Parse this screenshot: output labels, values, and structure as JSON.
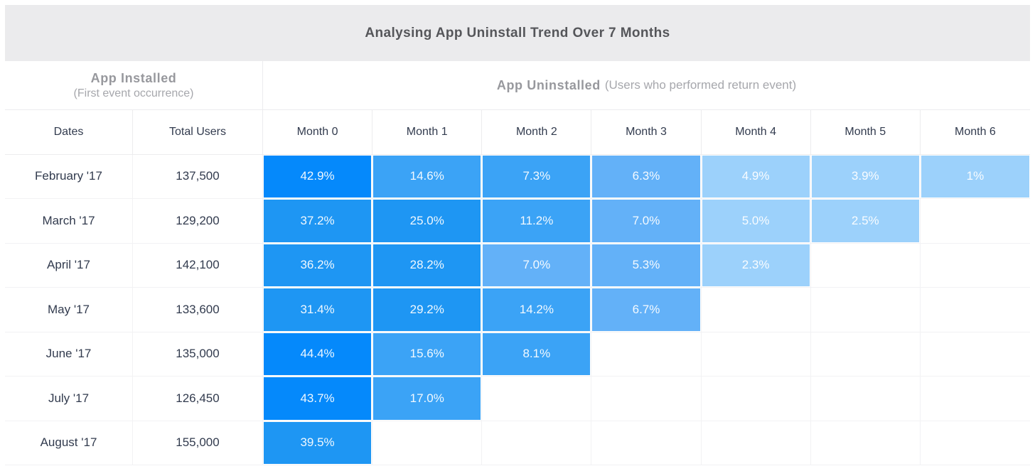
{
  "title": "Analysing App Uninstall Trend Over 7 Months",
  "group_headers": {
    "installed": {
      "label": "App Installed",
      "sub": "(First event occurrence)"
    },
    "uninstalled": {
      "label": "App Uninstalled",
      "sub": "(Users who performed return event)"
    }
  },
  "columns": [
    "Dates",
    "Total Users",
    "Month 0",
    "Month 1",
    "Month 2",
    "Month 3",
    "Month 4",
    "Month 5",
    "Month 6"
  ],
  "palette": {
    "c1": "#0589fb",
    "c2": "#1e96f3",
    "c3": "#3ba3f6",
    "c4": "#63b1f8",
    "c5": "#9cd1fb",
    "header_bg": "#ebebed",
    "text_dark": "#323b4e",
    "text_gray": "#97989d"
  },
  "rows": [
    {
      "date": "February '17",
      "total": "137,500",
      "cells": [
        {
          "v": "42.9%",
          "c": "c1"
        },
        {
          "v": "14.6%",
          "c": "c3"
        },
        {
          "v": "7.3%",
          "c": "c3"
        },
        {
          "v": "6.3%",
          "c": "c4"
        },
        {
          "v": "4.9%",
          "c": "c5"
        },
        {
          "v": "3.9%",
          "c": "c5"
        },
        {
          "v": "1%",
          "c": "c5"
        }
      ]
    },
    {
      "date": "March '17",
      "total": "129,200",
      "cells": [
        {
          "v": "37.2%",
          "c": "c2"
        },
        {
          "v": "25.0%",
          "c": "c2"
        },
        {
          "v": "11.2%",
          "c": "c3"
        },
        {
          "v": "7.0%",
          "c": "c4"
        },
        {
          "v": "5.0%",
          "c": "c5"
        },
        {
          "v": "2.5%",
          "c": "c5"
        },
        null
      ]
    },
    {
      "date": "April '17",
      "total": "142,100",
      "cells": [
        {
          "v": "36.2%",
          "c": "c2"
        },
        {
          "v": "28.2%",
          "c": "c2"
        },
        {
          "v": "7.0%",
          "c": "c4"
        },
        {
          "v": "5.3%",
          "c": "c4"
        },
        {
          "v": "2.3%",
          "c": "c5"
        },
        null,
        null
      ]
    },
    {
      "date": "May '17",
      "total": "133,600",
      "cells": [
        {
          "v": "31.4%",
          "c": "c2"
        },
        {
          "v": "29.2%",
          "c": "c2"
        },
        {
          "v": "14.2%",
          "c": "c3"
        },
        {
          "v": "6.7%",
          "c": "c4"
        },
        null,
        null,
        null
      ]
    },
    {
      "date": "June '17",
      "total": "135,000",
      "cells": [
        {
          "v": "44.4%",
          "c": "c1"
        },
        {
          "v": "15.6%",
          "c": "c3"
        },
        {
          "v": "8.1%",
          "c": "c3"
        },
        null,
        null,
        null,
        null
      ]
    },
    {
      "date": "July '17",
      "total": "126,450",
      "cells": [
        {
          "v": "43.7%",
          "c": "c1"
        },
        {
          "v": "17.0%",
          "c": "c3"
        },
        null,
        null,
        null,
        null,
        null
      ]
    },
    {
      "date": "August '17",
      "total": "155,000",
      "cells": [
        {
          "v": "39.5%",
          "c": "c2"
        },
        null,
        null,
        null,
        null,
        null,
        null
      ]
    }
  ],
  "chart_data": {
    "type": "heatmap",
    "title": "Analysing App Uninstall Trend Over 7 Months",
    "row_header_group": "App Installed (First event occurrence)",
    "col_header_group": "App Uninstalled (Users who performed return event)",
    "row_label_header": "Dates",
    "total_users_header": "Total Users",
    "rows": [
      "February '17",
      "March '17",
      "April '17",
      "May '17",
      "June '17",
      "July '17",
      "August '17"
    ],
    "total_users": [
      137500,
      129200,
      142100,
      133600,
      135000,
      126450,
      155000
    ],
    "columns": [
      "Month 0",
      "Month 1",
      "Month 2",
      "Month 3",
      "Month 4",
      "Month 5",
      "Month 6"
    ],
    "values_pct": [
      [
        42.9,
        14.6,
        7.3,
        6.3,
        4.9,
        3.9,
        1
      ],
      [
        37.2,
        25.0,
        11.2,
        7.0,
        5.0,
        2.5,
        null
      ],
      [
        36.2,
        28.2,
        7.0,
        5.3,
        2.3,
        null,
        null
      ],
      [
        31.4,
        29.2,
        14.2,
        6.7,
        null,
        null,
        null
      ],
      [
        44.4,
        15.6,
        8.1,
        null,
        null,
        null,
        null
      ],
      [
        43.7,
        17.0,
        null,
        null,
        null,
        null,
        null
      ],
      [
        39.5,
        null,
        null,
        null,
        null,
        null,
        null
      ]
    ],
    "legend_position": "none",
    "grid": true
  }
}
